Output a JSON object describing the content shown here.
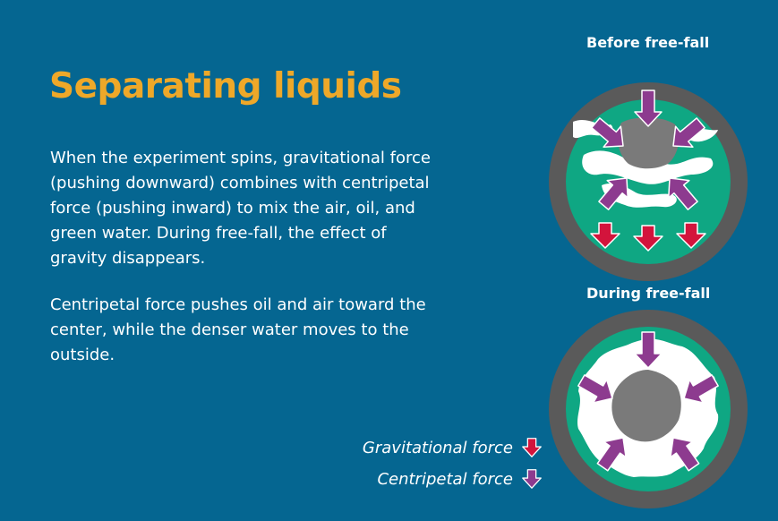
{
  "title": "Separating liquids",
  "paragraphs": [
    "When the experiment spins, gravitational force (pushing downward) combines with centripetal force (pushing inward) to mix the air, oil, and green water. During free-fall, the effect of gravity disappears.",
    "Centripetal force pushes oil and air toward the center, while the denser water moves to the outside."
  ],
  "diagrams": {
    "before": {
      "label": "Before free-fall"
    },
    "during": {
      "label": "During free-fall"
    }
  },
  "legend": {
    "gravitational": "Gravitational force",
    "centripetal": "Centripetal force"
  },
  "colors": {
    "background": "#056691",
    "title": "#eea829",
    "ring": "#5a5a5a",
    "water": "#0fa783",
    "oil": "#7a7a7a",
    "air": "#ffffff",
    "gravitational_arrow": "#d3143c",
    "centripetal_arrow": "#8d3b8f"
  },
  "icons": {
    "gravitational": "down-arrow-icon",
    "centripetal": "down-arrow-icon"
  }
}
